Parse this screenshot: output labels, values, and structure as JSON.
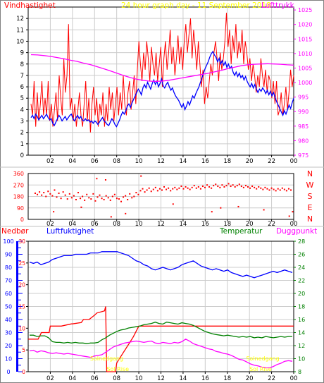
{
  "colors": {
    "wind": "#ff0000",
    "wind_avg": "#0000ff",
    "pressure": "#ff00ff",
    "humidity": "#0000ff",
    "temperature": "#008000",
    "dewpoint": "#ff00ff",
    "rain": "#ff0000",
    "frame": "#000000",
    "grid": "#cccccc",
    "title": "#ffff00",
    "bearing": "#ff0000",
    "event_label": "#ffff00"
  },
  "chart_data": [
    {
      "type": "line",
      "title": "24 hour graph day - 11 September 2018",
      "left_label": "Vindhastighet",
      "right_label": "Lufttrykk",
      "x_ticks": [
        "02",
        "04",
        "06",
        "08",
        "10",
        "12",
        "14",
        "16",
        "18",
        "20",
        "22",
        "00"
      ],
      "y_left_ticks": [
        0,
        1,
        2,
        3,
        4,
        5,
        6,
        7,
        8,
        9,
        10,
        11,
        12
      ],
      "y_right_ticks": [
        975,
        980,
        985,
        990,
        995,
        1000,
        1005,
        1010,
        1015,
        1020,
        1025
      ],
      "ylim_left": [
        0,
        13
      ],
      "ylim_right": [
        975,
        1026
      ],
      "series": [
        {
          "name": "wind",
          "axis": "left",
          "values": [
            4.5,
            3.5,
            6.5,
            2.5,
            5.5,
            3.0,
            4.5,
            6.5,
            3.5,
            5.0,
            3.5,
            6.5,
            3.0,
            4.5,
            2.5,
            4.0,
            5.5,
            3.0,
            7.0,
            5.0,
            3.5,
            8.5,
            5.5,
            7.0,
            11.5,
            4.0,
            5.0,
            3.0,
            4.5,
            2.5,
            4.0,
            5.5,
            3.5,
            2.5,
            4.5,
            6.5,
            3.0,
            5.0,
            2.0,
            4.5,
            6.0,
            3.5,
            5.0,
            2.5,
            4.5,
            3.5,
            5.5,
            2.5,
            4.5,
            3.0,
            6.0,
            4.0,
            5.5,
            3.0,
            4.5,
            6.0,
            3.5,
            5.5,
            4.0,
            7.0,
            4.5,
            3.5,
            5.5,
            6.5,
            4.0,
            5.5,
            7.0,
            4.5,
            7.5,
            10.0,
            8.0,
            6.5,
            9.0,
            7.5,
            10.0,
            8.5,
            6.5,
            9.5,
            8.0,
            7.0,
            9.0,
            6.5,
            8.0,
            9.5,
            6.0,
            8.5,
            10.0,
            7.5,
            9.0,
            11.0,
            8.0,
            9.5,
            7.0,
            8.5,
            10.5,
            8.0,
            9.5,
            7.5,
            10.0,
            11.5,
            9.0,
            10.5,
            12.0,
            8.5,
            11.0,
            9.5,
            7.5,
            10.0,
            8.0,
            6.0,
            7.5,
            4.5,
            6.0,
            5.0,
            6.5,
            8.0,
            7.0,
            9.0,
            10.0,
            8.5,
            6.5,
            9.0,
            7.5,
            8.5,
            10.0,
            12.5,
            9.5,
            11.0,
            8.0,
            10.5,
            9.0,
            11.5,
            8.5,
            10.0,
            9.0,
            11.0,
            8.0,
            10.0,
            9.0,
            7.5,
            8.5,
            6.5,
            8.0,
            7.0,
            5.5,
            7.0,
            6.0,
            8.5,
            7.0,
            6.0,
            7.5,
            5.5,
            7.0,
            6.5,
            5.0,
            6.5,
            4.5,
            6.5,
            3.5,
            4.0,
            5.5,
            3.5,
            4.5,
            6.0,
            4.0,
            5.5,
            7.5,
            6.0,
            7.0
          ]
        },
        {
          "name": "wind_avg",
          "axis": "left",
          "values": [
            3.3,
            3.5,
            3.2,
            3.6,
            3.4,
            3.1,
            3.3,
            3.5,
            3.2,
            3.4,
            3.6,
            3.3,
            3.1,
            3.2,
            2.8,
            2.6,
            2.9,
            3.2,
            3.5,
            3.3,
            3.0,
            3.2,
            3.4,
            3.1,
            3.3,
            3.5,
            3.6,
            3.2,
            3.0,
            3.3,
            3.5,
            3.2,
            3.4,
            3.1,
            3.0,
            3.2,
            3.0,
            3.1,
            2.9,
            3.0,
            2.8,
            3.0,
            2.9,
            2.7,
            2.9,
            3.1,
            3.3,
            3.0,
            2.9,
            2.7,
            2.6,
            2.9,
            3.2,
            3.0,
            2.7,
            2.5,
            2.8,
            3.1,
            3.5,
            3.8,
            3.6,
            3.9,
            4.3,
            4.5,
            4.2,
            4.6,
            4.9,
            5.2,
            5.5,
            5.8,
            5.6,
            5.3,
            5.9,
            6.2,
            5.9,
            6.4,
            6.1,
            5.8,
            6.3,
            6.6,
            6.2,
            6.5,
            6.0,
            6.3,
            6.7,
            6.1,
            5.9,
            6.2,
            6.4,
            6.0,
            5.7,
            5.9,
            5.5,
            5.2,
            5.0,
            4.8,
            4.5,
            4.2,
            4.5,
            4.0,
            4.3,
            4.7,
            4.4,
            4.8,
            5.2,
            5.0,
            5.4,
            5.7,
            6.0,
            6.4,
            6.8,
            7.2,
            7.6,
            7.9,
            8.2,
            8.6,
            8.9,
            9.1,
            8.8,
            8.6,
            8.2,
            8.5,
            8.0,
            8.3,
            7.9,
            8.2,
            7.7,
            8.0,
            7.6,
            7.8,
            7.3,
            7.0,
            7.3,
            6.9,
            7.2,
            6.8,
            7.0,
            6.6,
            6.9,
            6.5,
            6.2,
            6.0,
            6.3,
            5.9,
            6.2,
            5.8,
            5.5,
            5.8,
            5.6,
            5.9,
            5.7,
            5.4,
            5.7,
            5.3,
            5.6,
            5.2,
            5.5,
            5.1,
            4.7,
            4.4,
            4.1,
            3.8,
            3.5,
            3.9,
            3.6,
            4.0,
            4.4,
            4.1,
            4.6,
            5.0
          ]
        },
        {
          "name": "pressure",
          "axis": "right",
          "values": [
            1009.6,
            1009.5,
            1009.3,
            1009.0,
            1008.6,
            1008.2,
            1007.7,
            1007.3,
            1006.7,
            1006.2,
            1005.5,
            1004.8,
            1004.1,
            1003.3,
            1002.5,
            1001.8,
            1001.2,
            1000.8,
            1000.5,
            1000.4,
            1000.5,
            1000.8,
            1001.2,
            1001.6,
            1002.0,
            1002.4,
            1002.8,
            1003.2,
            1003.7,
            1004.2,
            1004.8,
            1005.3,
            1005.8,
            1006.1,
            1006.3,
            1006.4,
            1006.5,
            1006.4,
            1006.3,
            1006.1,
            1006.0
          ]
        }
      ]
    },
    {
      "type": "scatter",
      "title": "",
      "x_ticks": [
        "02",
        "04",
        "06",
        "08",
        "10",
        "12",
        "14",
        "16",
        "18",
        "20",
        "22",
        "00"
      ],
      "y_ticks": [
        0,
        90,
        180,
        270,
        360
      ],
      "ylim": [
        0,
        360
      ],
      "direction_labels": [
        "N",
        "W",
        "S",
        "E",
        "N"
      ],
      "series": [
        {
          "name": "wind_direction",
          "values": [
            205,
            195,
            215,
            190,
            210,
            180,
            220,
            200,
            185,
            230,
            175,
            205,
            165,
            215,
            190,
            160,
            200,
            170,
            185,
            155,
            210,
            165,
            180,
            150,
            195,
            170,
            160,
            200,
            145,
            175,
            190,
            165,
            155,
            185,
            170,
            150,
            180,
            195,
            165,
            160,
            140,
            175,
            185,
            155,
            200,
            170,
            180,
            210,
            195,
            225,
            240,
            215,
            230,
            245,
            220,
            235,
            250,
            225,
            240,
            230,
            255,
            235,
            245,
            225,
            240,
            250,
            235,
            245,
            260,
            240,
            255,
            245,
            235,
            250,
            265,
            245,
            255,
            240,
            260,
            250,
            270,
            255,
            245,
            265,
            275,
            260,
            250,
            270,
            255,
            265,
            280,
            260,
            270,
            255,
            265,
            275,
            260,
            250,
            265,
            255,
            245,
            260,
            250,
            240,
            255,
            245,
            235,
            250,
            240,
            230,
            245,
            235,
            225,
            240,
            230,
            245,
            235,
            225,
            240,
            230
          ]
        },
        {
          "name": "wind_direction_outliers",
          "x_hours": [
            2.3,
            4.8,
            6.2,
            7.0,
            7.5,
            8.8,
            10.2,
            13.1,
            16.6,
            17.4,
            19.0,
            21.3,
            23.6,
            23.9
          ],
          "values": [
            60,
            95,
            320,
            310,
            20,
            45,
            340,
            120,
            60,
            90,
            100,
            75,
            25,
            60
          ]
        }
      ]
    },
    {
      "type": "line",
      "title": "",
      "rain_label": "Nedbør",
      "humidity_label": "Luftfuktighet",
      "temperature_label": "Temperatur",
      "dewpoint_label": "Duggpunkt",
      "x_ticks": [
        "02",
        "04",
        "06",
        "08",
        "10",
        "12",
        "14",
        "16",
        "18",
        "20",
        "22",
        "00"
      ],
      "y_rain_ticks": [
        0,
        5,
        10,
        15,
        20,
        25,
        30
      ],
      "y_humidity_ticks": [
        0,
        10,
        20,
        30,
        40,
        50,
        60,
        70,
        80,
        90,
        100
      ],
      "y_temp_ticks": [
        8,
        10,
        12,
        14,
        16,
        18,
        20,
        22,
        24,
        26,
        28
      ],
      "ylim_rain": [
        0,
        30
      ],
      "ylim_humidity": [
        0,
        100
      ],
      "ylim_temp": [
        8,
        28
      ],
      "events": [
        {
          "label": "Solnedgang",
          "x_hour": 7.1
        },
        {
          "label": "Sol Rise",
          "x_hour": 8.1
        },
        {
          "label": "Solnedgang",
          "x_hour": 21.2
        },
        {
          "label": "Sol Rise",
          "x_hour": 21.0
        }
      ],
      "series": [
        {
          "name": "rain",
          "axis": "rain",
          "x_hours": [
            0,
            0.9,
            1.2,
            1.9,
            2.0,
            3.0,
            3.9,
            4.0,
            4.8,
            5.0,
            5.5,
            6.0,
            6.2,
            6.9,
            7.0,
            7.1,
            7.9,
            8.0,
            8.5,
            9.0,
            9.5,
            10.0,
            15.5,
            15.6,
            24.0
          ],
          "values": [
            7.5,
            7.5,
            9.0,
            9.0,
            10.5,
            10.5,
            11.0,
            11.0,
            11.3,
            12.0,
            12.0,
            13.0,
            13.5,
            14.0,
            15.0,
            0,
            0,
            2.0,
            4.0,
            6.0,
            8.0,
            10.5,
            10.5,
            10.5,
            10.5
          ]
        },
        {
          "name": "humidity",
          "axis": "humidity",
          "values": [
            84,
            83,
            84,
            82,
            83,
            84,
            86,
            87,
            88,
            89,
            89,
            89,
            90,
            90,
            90,
            90,
            91,
            91,
            91,
            92,
            92,
            92,
            92,
            92,
            91,
            90,
            89,
            87,
            85,
            84,
            82,
            81,
            79,
            78,
            79,
            80,
            79,
            78,
            79,
            80,
            82,
            83,
            84,
            85,
            83,
            81,
            80,
            79,
            78,
            79,
            78,
            77,
            78,
            76,
            75,
            74,
            73,
            74,
            73,
            72,
            73,
            74,
            75,
            76,
            77,
            76,
            77,
            78,
            77,
            76
          ]
        },
        {
          "name": "temperature",
          "axis": "temp",
          "values": [
            13.6,
            13.6,
            13.4,
            13.5,
            13.5,
            13.2,
            12.6,
            12.5,
            12.5,
            12.4,
            12.5,
            12.4,
            12.5,
            12.4,
            12.4,
            12.3,
            12.4,
            12.4,
            12.5,
            12.9,
            13.2,
            13.6,
            13.9,
            14.2,
            14.4,
            14.5,
            14.7,
            14.8,
            14.9,
            15.0,
            15.2,
            15.3,
            15.4,
            15.6,
            15.4,
            15.3,
            15.6,
            15.5,
            15.4,
            15.3,
            15.5,
            15.4,
            15.3,
            15.1,
            14.8,
            14.5,
            14.2,
            14.0,
            13.8,
            13.7,
            13.6,
            13.5,
            13.6,
            13.5,
            13.4,
            13.3,
            13.4,
            13.3,
            13.4,
            13.2,
            13.3,
            13.2,
            13.4,
            13.3,
            13.2,
            13.3,
            13.4,
            13.3,
            13.4,
            13.4
          ]
        },
        {
          "name": "dewpoint",
          "axis": "temp",
          "values": [
            11.2,
            11.3,
            11.0,
            11.2,
            11.1,
            10.9,
            10.8,
            10.9,
            10.8,
            10.7,
            10.8,
            10.7,
            10.6,
            10.5,
            10.4,
            10.3,
            10.2,
            10.4,
            10.5,
            10.6,
            11.0,
            11.4,
            11.8,
            12.0,
            12.2,
            12.4,
            12.5,
            12.6,
            12.7,
            12.6,
            12.5,
            12.6,
            12.7,
            12.4,
            12.3,
            12.5,
            12.4,
            12.3,
            12.5,
            12.4,
            12.6,
            13.0,
            12.7,
            12.3,
            12.1,
            11.9,
            11.7,
            11.5,
            11.4,
            11.1,
            11.0,
            10.8,
            10.7,
            10.5,
            10.2,
            9.9,
            9.8,
            9.5,
            9.2,
            9.0,
            8.9,
            8.7,
            8.6,
            8.6,
            8.8,
            9.1,
            9.3,
            9.6,
            9.7,
            9.6
          ]
        }
      ]
    }
  ]
}
